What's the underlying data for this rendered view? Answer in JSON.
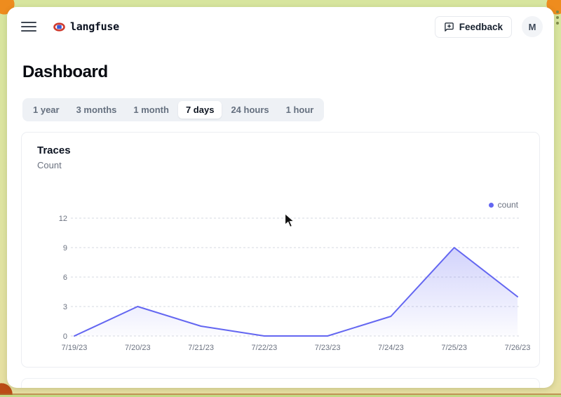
{
  "frame": {
    "controls_icon": "vertical-ellipsis"
  },
  "topbar": {
    "brand": "langfuse",
    "feedback": {
      "label": "Feedback"
    },
    "avatar": {
      "initial": "M"
    }
  },
  "page": {
    "title": "Dashboard"
  },
  "time_range_tabs": {
    "items": [
      {
        "label": "1 year",
        "active": false
      },
      {
        "label": "3 months",
        "active": false
      },
      {
        "label": "1 month",
        "active": false
      },
      {
        "label": "7 days",
        "active": true
      },
      {
        "label": "24 hours",
        "active": false
      },
      {
        "label": "1 hour",
        "active": false
      }
    ]
  },
  "traces_card": {
    "title": "Traces",
    "subtitle": "Count",
    "legend": [
      {
        "label": "count",
        "color": "#6366f1"
      }
    ]
  },
  "chart_data": {
    "type": "area",
    "title": "Traces",
    "ylabel": "Count",
    "x": [
      "7/19/23",
      "7/20/23",
      "7/21/23",
      "7/22/23",
      "7/23/23",
      "7/24/23",
      "7/25/23",
      "7/26/23"
    ],
    "series": [
      {
        "name": "count",
        "values": [
          0,
          3,
          1,
          0,
          0,
          2,
          9,
          4
        ],
        "color": "#6366f1"
      }
    ],
    "yticks": [
      0,
      3,
      6,
      9,
      12
    ],
    "ylim": [
      0,
      12
    ],
    "grid": "horizontal-dashed",
    "legend_position": "top-right",
    "tick_color": "#6b7280"
  },
  "colors": {
    "accent": "#6366f1",
    "frame_background": "#dce7a1",
    "frame_corner": "#ee8c1e"
  }
}
